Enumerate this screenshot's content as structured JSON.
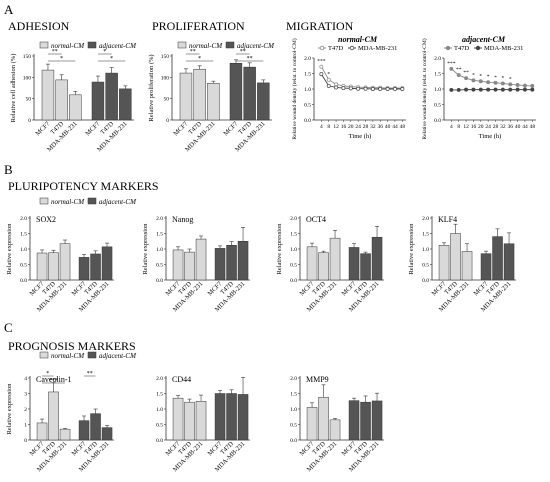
{
  "panel_letters": [
    "A",
    "B",
    "C"
  ],
  "section_titles": {
    "adhesion": "ADHESION",
    "proliferation": "PROLIFERATION",
    "migration": "MIGRATION",
    "pluripotency": "PLURIPOTENCY MARKERS",
    "prognosis": "PROGNOSIS MARKERS"
  },
  "legend": {
    "normal": "normal-CM",
    "adjacent": "adjacent-CM"
  },
  "colors": {
    "normal": "#d9d9d9",
    "adjacent": "#555555",
    "edge": "#333333",
    "migration_t47d": "#888888",
    "migration_mda": "#444444"
  },
  "migration_legend": {
    "t47d": "T47D",
    "mda": "MDA-MB-231"
  },
  "chart_data": [
    {
      "id": "adhesion",
      "type": "bar",
      "title": "",
      "xlabel": "",
      "ylabel": "Relative cell adhesion (%)",
      "ylim": [
        0,
        150
      ],
      "yticks": [
        0,
        50,
        100,
        150
      ],
      "categories": [
        "MCF7",
        "T47D",
        "MDA-MB-231"
      ],
      "series": [
        {
          "name": "normal-CM",
          "values": [
            117,
            94,
            59
          ],
          "errors": [
            14,
            12,
            8
          ]
        },
        {
          "name": "adjacent-CM",
          "values": [
            89,
            110,
            73
          ],
          "errors": [
            14,
            13,
            7
          ]
        }
      ],
      "annotations": [
        "**",
        "*",
        "*",
        "*"
      ]
    },
    {
      "id": "proliferation",
      "type": "bar",
      "title": "",
      "xlabel": "",
      "ylabel": "Relative proliferation (%)",
      "ylim": [
        0,
        150
      ],
      "yticks": [
        0,
        50,
        100,
        150
      ],
      "categories": [
        "MCF7",
        "T47D",
        "MDA-MB-231"
      ],
      "series": [
        {
          "name": "normal-CM",
          "values": [
            110,
            119,
            86
          ],
          "errors": [
            10,
            8,
            5
          ]
        },
        {
          "name": "adjacent-CM",
          "values": [
            133,
            124,
            87
          ],
          "errors": [
            8,
            10,
            7
          ]
        }
      ],
      "annotations": [
        "**",
        "*",
        "**",
        "**"
      ]
    },
    {
      "id": "migration_normal",
      "type": "line",
      "title": "normal-CM",
      "xlabel": "Time (h)",
      "ylabel": "Relative wound density (relat. to control-CM)",
      "ylim": [
        0,
        2.0
      ],
      "yticks": [
        0.0,
        0.5,
        1.0,
        1.5,
        2.0
      ],
      "x": [
        4,
        8,
        12,
        16,
        20,
        24,
        28,
        32,
        36,
        40,
        44,
        48
      ],
      "series": [
        {
          "name": "T47D",
          "values": [
            1.72,
            1.3,
            1.15,
            1.1,
            1.08,
            1.06,
            1.05,
            1.04,
            1.04,
            1.03,
            1.03,
            1.03
          ]
        },
        {
          "name": "MDA-MB-231",
          "values": [
            1.48,
            1.1,
            1.05,
            1.03,
            1.02,
            1.01,
            1.01,
            1.0,
            1.0,
            1.0,
            1.0,
            1.0
          ]
        }
      ],
      "annotations": [
        "***",
        "*"
      ]
    },
    {
      "id": "migration_adjacent",
      "type": "line",
      "title": "adjacent-CM",
      "xlabel": "Time (h)",
      "ylabel": "Relative wound density (relat. to control-CM)",
      "ylim": [
        0,
        2.0
      ],
      "yticks": [
        0.0,
        0.5,
        1.0,
        1.5,
        2.0
      ],
      "x": [
        4,
        8,
        12,
        16,
        20,
        24,
        28,
        32,
        36,
        40,
        44,
        48
      ],
      "series": [
        {
          "name": "T47D",
          "values": [
            1.65,
            1.45,
            1.35,
            1.28,
            1.25,
            1.22,
            1.2,
            1.18,
            1.15,
            1.13,
            1.11,
            1.1
          ]
        },
        {
          "name": "MDA-MB-231",
          "values": [
            0.97,
            0.97,
            0.98,
            0.98,
            0.98,
            0.98,
            0.98,
            0.98,
            0.98,
            0.98,
            0.98,
            0.98
          ]
        }
      ],
      "annotations": [
        "***",
        "**",
        "**",
        "*",
        "*",
        "*",
        "*",
        "*",
        "*"
      ]
    },
    {
      "id": "sox2",
      "type": "bar",
      "title": "SOX2",
      "xlabel": "",
      "ylabel": "Relative expression",
      "ylim": [
        0,
        2.0
      ],
      "yticks": [
        0.0,
        0.5,
        1.0,
        1.5,
        2.0
      ],
      "categories": [
        "MCF7",
        "T47D",
        "MDA-MB-231"
      ],
      "series": [
        {
          "name": "normal-CM",
          "values": [
            0.87,
            0.88,
            1.17
          ],
          "errors": [
            0.1,
            0.08,
            0.12
          ]
        },
        {
          "name": "adjacent-CM",
          "values": [
            0.73,
            0.84,
            1.07
          ],
          "errors": [
            0.1,
            0.1,
            0.12
          ]
        }
      ]
    },
    {
      "id": "nanog",
      "type": "bar",
      "title": "Nanog",
      "xlabel": "",
      "ylabel": "Relative expression",
      "ylim": [
        0,
        2.0
      ],
      "yticks": [
        0.0,
        0.5,
        1.0,
        1.5,
        2.0
      ],
      "categories": [
        "MCF7",
        "T47D",
        "MDA-MB-231"
      ],
      "series": [
        {
          "name": "normal-CM",
          "values": [
            0.97,
            0.9,
            1.32
          ],
          "errors": [
            0.1,
            0.1,
            0.1
          ]
        },
        {
          "name": "adjacent-CM",
          "values": [
            1.02,
            1.12,
            1.25
          ],
          "errors": [
            0.08,
            0.12,
            0.45
          ]
        }
      ]
    },
    {
      "id": "oct4",
      "type": "bar",
      "title": "OCT4",
      "xlabel": "",
      "ylabel": "Relative expression",
      "ylim": [
        0,
        2.0
      ],
      "yticks": [
        0.0,
        0.5,
        1.0,
        1.5,
        2.0
      ],
      "categories": [
        "MCF7",
        "T47D",
        "MDA-MB-231"
      ],
      "series": [
        {
          "name": "normal-CM",
          "values": [
            1.07,
            0.88,
            1.35
          ],
          "errors": [
            0.12,
            0.05,
            0.25
          ]
        },
        {
          "name": "adjacent-CM",
          "values": [
            1.05,
            0.85,
            1.38
          ],
          "errors": [
            0.12,
            0.05,
            0.35
          ]
        }
      ]
    },
    {
      "id": "klf4",
      "type": "bar",
      "title": "KLF4",
      "xlabel": "",
      "ylabel": "Relative expression",
      "ylim": [
        0,
        2.0
      ],
      "yticks": [
        0.0,
        0.5,
        1.0,
        1.5,
        2.0
      ],
      "categories": [
        "MCF7",
        "T47D",
        "MDA-MB-231"
      ],
      "series": [
        {
          "name": "normal-CM",
          "values": [
            1.12,
            1.5,
            0.92
          ],
          "errors": [
            0.08,
            0.3,
            0.25
          ]
        },
        {
          "name": "adjacent-CM",
          "values": [
            0.85,
            1.4,
            1.17
          ],
          "errors": [
            0.08,
            0.25,
            0.35
          ]
        }
      ]
    },
    {
      "id": "caveolin1",
      "type": "bar",
      "title": "Caveolin-1",
      "xlabel": "",
      "ylabel": "Relative expression",
      "ylim": [
        0,
        4
      ],
      "yticks": [
        0,
        1,
        2,
        3,
        4
      ],
      "categories": [
        "MCF7",
        "T47D",
        "MDA-MB-231"
      ],
      "series": [
        {
          "name": "normal-CM",
          "values": [
            1.1,
            3.1,
            0.7
          ],
          "errors": [
            0.25,
            0.6,
            0.05
          ]
        },
        {
          "name": "adjacent-CM",
          "values": [
            1.25,
            1.7,
            0.8
          ],
          "errors": [
            0.3,
            0.3,
            0.15
          ]
        }
      ],
      "annotations": [
        "*",
        "***",
        "**"
      ]
    },
    {
      "id": "cd44",
      "type": "bar",
      "title": "CD44",
      "xlabel": "",
      "ylabel": "",
      "ylim": [
        0,
        2.0
      ],
      "yticks": [
        0.0,
        0.5,
        1.0,
        1.5,
        2.0
      ],
      "categories": [
        "MCF7",
        "T47D",
        "MDA-MB-231"
      ],
      "series": [
        {
          "name": "normal-CM",
          "values": [
            1.35,
            1.22,
            1.25
          ],
          "errors": [
            0.08,
            0.1,
            0.2
          ]
        },
        {
          "name": "adjacent-CM",
          "values": [
            1.5,
            1.5,
            1.47
          ],
          "errors": [
            0.1,
            0.12,
            0.55
          ]
        }
      ]
    },
    {
      "id": "mmp9",
      "type": "bar",
      "title": "MMP9",
      "xlabel": "",
      "ylabel": "",
      "ylim": [
        0,
        2.0
      ],
      "yticks": [
        0.0,
        0.5,
        1.0,
        1.5,
        2.0
      ],
      "categories": [
        "MCF7",
        "T47D",
        "MDA-MB-231"
      ],
      "series": [
        {
          "name": "normal-CM",
          "values": [
            1.05,
            1.38,
            0.65
          ],
          "errors": [
            0.15,
            0.4,
            0.05
          ]
        },
        {
          "name": "adjacent-CM",
          "values": [
            1.27,
            1.22,
            1.26
          ],
          "errors": [
            0.08,
            0.2,
            0.25
          ]
        }
      ]
    }
  ]
}
